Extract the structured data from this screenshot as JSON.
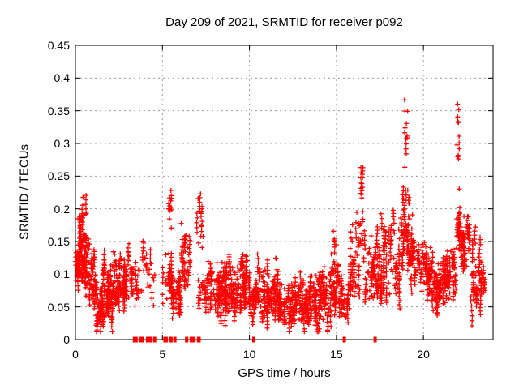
{
  "chart": {
    "title": "Day 209 of 2021, SRMTID for receiver p092",
    "xlabel": "GPS time / hours",
    "ylabel": "SRMTID / TECUs"
  },
  "chart_data": {
    "type": "scatter",
    "title": "Day 209 of 2021, SRMTID for receiver p092",
    "xlabel": "GPS time / hours",
    "ylabel": "SRMTID / TECUs",
    "xlim": [
      0,
      24
    ],
    "ylim": [
      0,
      0.45
    ],
    "xticks": [
      0,
      5,
      10,
      15,
      20
    ],
    "xticklabels": [
      "0",
      "5",
      "10",
      "15",
      "20"
    ],
    "yticks": [
      0,
      0.05,
      0.1,
      0.15,
      0.2,
      0.25,
      0.3,
      0.35,
      0.4,
      0.45
    ],
    "yticklabels": [
      "0",
      "0.05",
      "0.1",
      "0.15",
      "0.2",
      "0.25",
      "0.3",
      "0.35",
      "0.4",
      "0.45"
    ],
    "grid": true,
    "grid_style": "dotted",
    "grid_color": "#9b9b9b",
    "axis_color": "#000000",
    "marker": "plus",
    "marker_color": "#ff0000",
    "marker_size_px": 6,
    "seed": 209,
    "cluster_segments": {
      "format": [
        "x_start_hours",
        "x_end_hours",
        "num_points",
        "y_min_TECUs",
        "y_max_TECUs",
        "low_bias_exponent"
      ],
      "segments": [
        [
          0.0,
          0.18,
          30,
          0.085,
          0.14,
          1.1
        ],
        [
          0.08,
          0.62,
          120,
          0.085,
          0.225,
          1.7
        ],
        [
          0.55,
          1.1,
          80,
          0.055,
          0.175,
          1.5
        ],
        [
          1.1,
          2.15,
          200,
          0.022,
          0.125,
          1.35
        ],
        [
          2.15,
          2.6,
          70,
          0.05,
          0.168,
          1.45
        ],
        [
          2.6,
          3.35,
          90,
          0.055,
          0.14,
          1.4
        ],
        [
          3.35,
          3.8,
          22,
          0.05,
          0.115,
          1.2
        ],
        [
          3.88,
          4.12,
          16,
          0.09,
          0.168,
          1.0
        ],
        [
          4.15,
          4.58,
          16,
          0.04,
          0.13,
          1.1
        ],
        [
          5.0,
          5.62,
          60,
          0.05,
          0.158,
          1.3
        ],
        [
          5.35,
          5.55,
          13,
          0.155,
          0.243,
          0.9
        ],
        [
          5.62,
          6.1,
          60,
          0.038,
          0.115,
          1.3
        ],
        [
          6.08,
          6.6,
          60,
          0.075,
          0.202,
          1.35
        ],
        [
          6.95,
          7.42,
          24,
          0.115,
          0.253,
          1.05
        ],
        [
          7.05,
          7.45,
          22,
          0.05,
          0.115,
          1.2
        ],
        [
          7.45,
          9.35,
          260,
          0.038,
          0.128,
          1.5
        ],
        [
          9.35,
          10.05,
          95,
          0.038,
          0.148,
          1.55
        ],
        [
          10.05,
          11.35,
          170,
          0.032,
          0.115,
          1.5
        ],
        [
          11.35,
          13.55,
          300,
          0.024,
          0.098,
          1.4
        ],
        [
          11.5,
          11.72,
          12,
          0.065,
          0.135,
          1.0
        ],
        [
          13.55,
          14.55,
          130,
          0.03,
          0.115,
          1.4
        ],
        [
          14.6,
          15.25,
          85,
          0.045,
          0.175,
          1.65
        ],
        [
          15.25,
          15.75,
          55,
          0.026,
          0.105,
          1.3
        ],
        [
          15.75,
          16.32,
          70,
          0.06,
          0.22,
          1.6
        ],
        [
          16.35,
          16.65,
          32,
          0.115,
          0.282,
          1.3
        ],
        [
          16.65,
          17.55,
          110,
          0.06,
          0.168,
          1.4
        ],
        [
          17.55,
          18.65,
          135,
          0.065,
          0.212,
          1.55
        ],
        [
          18.68,
          19.18,
          75,
          0.1,
          0.245,
          1.25
        ],
        [
          18.85,
          19.1,
          15,
          0.245,
          0.405,
          0.95
        ],
        [
          19.18,
          19.65,
          60,
          0.09,
          0.215,
          1.45
        ],
        [
          19.65,
          20.45,
          95,
          0.07,
          0.158,
          1.4
        ],
        [
          20.45,
          21.35,
          140,
          0.055,
          0.135,
          1.3
        ],
        [
          21.35,
          21.88,
          65,
          0.055,
          0.145,
          1.3
        ],
        [
          21.88,
          22.12,
          42,
          0.115,
          0.228,
          1.1
        ],
        [
          21.92,
          22.06,
          13,
          0.228,
          0.382,
          0.95
        ],
        [
          22.12,
          22.65,
          70,
          0.1,
          0.208,
          1.25
        ],
        [
          22.65,
          23.3,
          85,
          0.05,
          0.155,
          1.5
        ],
        [
          23.28,
          23.58,
          25,
          0.058,
          0.12,
          1.2
        ]
      ]
    },
    "zero_value_runs": {
      "format": [
        "x_start_hours",
        "width_hours"
      ],
      "runs": [
        [
          3.3,
          0.28
        ],
        [
          3.66,
          0.3
        ],
        [
          4.05,
          0.1
        ],
        [
          4.2,
          0.17
        ],
        [
          4.46,
          0.1
        ],
        [
          5.05,
          0.26
        ],
        [
          5.4,
          0.15
        ],
        [
          5.62,
          0.17
        ],
        [
          6.3,
          0.17
        ],
        [
          6.56,
          0.1
        ],
        [
          6.7,
          0.2
        ],
        [
          6.98,
          0.22
        ],
        [
          10.16,
          0.14
        ],
        [
          15.36,
          0.14
        ],
        [
          17.13,
          0.16
        ]
      ]
    }
  }
}
